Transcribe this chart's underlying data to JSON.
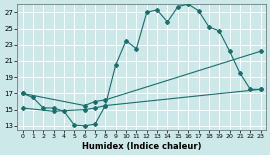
{
  "xlabel": "Humidex (Indice chaleur)",
  "bg_color": "#cce8e8",
  "line_color": "#1a6e6e",
  "grid_color": "#b0d8d8",
  "xlim": [
    -0.5,
    23.5
  ],
  "ylim": [
    12.5,
    28.0
  ],
  "xticks": [
    0,
    1,
    2,
    3,
    4,
    5,
    6,
    7,
    8,
    9,
    10,
    11,
    12,
    13,
    14,
    15,
    16,
    17,
    18,
    19,
    20,
    21,
    22,
    23
  ],
  "yticks": [
    13,
    15,
    17,
    19,
    21,
    23,
    25,
    27
  ],
  "line1_x": [
    0,
    1,
    2,
    3,
    4,
    5,
    6,
    7,
    8,
    9,
    10,
    11,
    12,
    13,
    14,
    15,
    16,
    17,
    18,
    19,
    20,
    21,
    22,
    23
  ],
  "line1_y": [
    17.0,
    16.5,
    15.2,
    15.2,
    14.8,
    13.1,
    13.0,
    13.2,
    15.5,
    20.5,
    23.5,
    22.5,
    27.0,
    27.3,
    25.8,
    27.7,
    28.0,
    27.2,
    25.2,
    24.7,
    22.2,
    19.5,
    17.5,
    17.5
  ],
  "line2_x": [
    0,
    6,
    7,
    8,
    23
  ],
  "line2_y": [
    17.0,
    15.5,
    16.0,
    16.2,
    22.2
  ],
  "line3_x": [
    0,
    3,
    6,
    7,
    8,
    23
  ],
  "line3_y": [
    15.2,
    14.8,
    15.0,
    15.2,
    15.5,
    17.5
  ]
}
